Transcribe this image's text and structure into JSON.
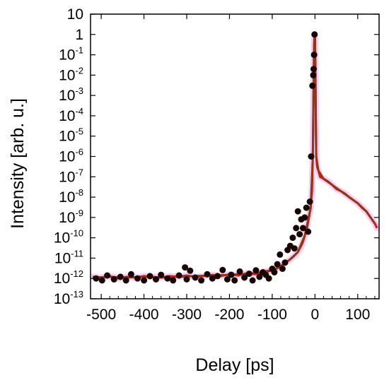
{
  "chart_data": {
    "type": "scatter",
    "title": "",
    "xlabel": "Delay [ps]",
    "ylabel": "Intensity [arb. u.]",
    "xlim": [
      -525,
      150
    ],
    "ylim": [
      1e-13,
      10
    ],
    "yscale": "log",
    "grid": false,
    "x_ticks": [
      {
        "value": -500,
        "label": "-500"
      },
      {
        "value": -400,
        "label": "-400"
      },
      {
        "value": -300,
        "label": "-300"
      },
      {
        "value": -200,
        "label": "-200"
      },
      {
        "value": -100,
        "label": "-100"
      },
      {
        "value": 0,
        "label": "0"
      },
      {
        "value": 100,
        "label": "100"
      }
    ],
    "y_ticks": [
      {
        "exp": 1,
        "base": "10",
        "sup": ""
      },
      {
        "exp": 0,
        "base": "1",
        "sup": ""
      },
      {
        "exp": -1,
        "base": "10",
        "sup": "-1"
      },
      {
        "exp": -2,
        "base": "10",
        "sup": "-2"
      },
      {
        "exp": -3,
        "base": "10",
        "sup": "-3"
      },
      {
        "exp": -4,
        "base": "10",
        "sup": "-4"
      },
      {
        "exp": -5,
        "base": "10",
        "sup": "-5"
      },
      {
        "exp": -6,
        "base": "10",
        "sup": "-6"
      },
      {
        "exp": -7,
        "base": "10",
        "sup": "-7"
      },
      {
        "exp": -8,
        "base": "10",
        "sup": "-8"
      },
      {
        "exp": -9,
        "base": "10",
        "sup": "-9"
      },
      {
        "exp": -10,
        "base": "10",
        "sup": "-10"
      },
      {
        "exp": -11,
        "base": "10",
        "sup": "-11"
      },
      {
        "exp": -12,
        "base": "10",
        "sup": "-12"
      },
      {
        "exp": -13,
        "base": "10",
        "sup": "-13"
      }
    ],
    "series": [
      {
        "kind": "line",
        "color": "#e0130f",
        "halo_color": "#f3a6ee",
        "x": [
          -520,
          -500,
          -480,
          -460,
          -440,
          -420,
          -400,
          -380,
          -360,
          -340,
          -320,
          -300,
          -280,
          -260,
          -240,
          -220,
          -200,
          -180,
          -160,
          -140,
          -120,
          -100,
          -90,
          -80,
          -70,
          -60,
          -50,
          -40,
          -30,
          -25,
          -20,
          -15,
          -10,
          -7,
          -5,
          -4,
          -3,
          -2,
          -1,
          0,
          1,
          2,
          3,
          5,
          8,
          12,
          20,
          30,
          40,
          50,
          60,
          70,
          80,
          90,
          100,
          110,
          120,
          130,
          140,
          145
        ],
        "y": [
          1.2e-12,
          1.1e-12,
          1.3e-12,
          1e-12,
          1.2e-12,
          1.1e-12,
          1.3e-12,
          1.2e-12,
          1.1e-12,
          1.3e-12,
          1.2e-12,
          1.4e-12,
          1.2e-12,
          1.3e-12,
          1.5e-12,
          1.3e-12,
          1.6e-12,
          1.4e-12,
          1.8e-12,
          1.6e-12,
          2.2e-12,
          2.5e-12,
          3e-12,
          4e-12,
          6e-12,
          8e-12,
          1.2e-11,
          2e-11,
          5e-11,
          1e-10,
          3e-10,
          1e-09,
          3e-09,
          2e-08,
          1e-06,
          0.0001,
          0.01,
          0.3,
          1.0,
          0.8,
          0.05,
          0.0001,
          1e-06,
          3e-07,
          2e-07,
          1e-07,
          8e-08,
          6e-08,
          4e-08,
          2.5e-08,
          2e-08,
          1.5e-08,
          1e-08,
          7e-09,
          5e-09,
          3e-09,
          2e-09,
          1e-09,
          5e-10,
          3e-10
        ]
      },
      {
        "kind": "line",
        "color": "#8b3a12",
        "x": [
          -520,
          -480,
          -440,
          -400,
          -360,
          -320,
          -280,
          -240,
          -200,
          -160,
          -120,
          -100,
          -80,
          -60,
          -40,
          -20,
          -10,
          -5,
          -2,
          -1,
          0,
          1,
          3,
          8,
          20,
          40,
          60,
          80,
          100,
          120,
          140
        ],
        "y": [
          1.1e-12,
          1.2e-12,
          1.1e-12,
          1.2e-12,
          1.1e-12,
          1.2e-12,
          1.3e-12,
          1.4e-12,
          1.5e-12,
          1.7e-12,
          2e-12,
          2.5e-12,
          4e-12,
          8e-12,
          2e-11,
          2e-10,
          3e-09,
          1e-06,
          0.2,
          1.0,
          0.6,
          0.02,
          1e-06,
          2e-07,
          8e-08,
          4e-08,
          2e-08,
          1e-08,
          5e-09,
          2e-09,
          5e-10
        ]
      },
      {
        "kind": "scatter",
        "color": "#1a0505",
        "x": [
          -512,
          -498,
          -486,
          -470,
          -455,
          -442,
          -430,
          -415,
          -400,
          -386,
          -372,
          -360,
          -345,
          -332,
          -318,
          -304,
          -300,
          -292,
          -280,
          -266,
          -252,
          -240,
          -228,
          -216,
          -205,
          -196,
          -188,
          -176,
          -165,
          -154,
          -146,
          -138,
          -130,
          -122,
          -115,
          -108,
          -100,
          -95,
          -88,
          -82,
          -76,
          -70,
          -64,
          -58,
          -52,
          -48,
          -44,
          -40,
          -36,
          -32,
          -28,
          -24,
          -20,
          -16,
          -12,
          -9,
          -6,
          -4,
          -3,
          -2,
          -1
        ],
        "y": [
          1e-12,
          8e-13,
          1.4e-12,
          9e-13,
          1.2e-12,
          8e-13,
          1.6e-12,
          1e-12,
          8e-13,
          1.3e-12,
          9e-13,
          1.5e-12,
          1e-12,
          8e-13,
          1.4e-12,
          3.5e-12,
          9e-13,
          2.4e-12,
          1.1e-12,
          8e-13,
          1.6e-12,
          1e-12,
          1.3e-12,
          2.6e-12,
          9e-13,
          1.5e-12,
          8e-13,
          2.2e-12,
          1.1e-12,
          1.7e-12,
          8e-13,
          2.5e-12,
          1.2e-12,
          2e-12,
          1.5e-12,
          1e-12,
          3e-12,
          2e-12,
          5e-12,
          1.5e-11,
          3e-12,
          6e-12,
          2.5e-11,
          4e-11,
          1e-10,
          3e-11,
          3e-10,
          2e-09,
          1.5e-10,
          8e-10,
          3e-10,
          1e-09,
          3e-09,
          2e-10,
          6e-09,
          1e-06,
          0.003,
          0.01,
          0.02,
          0.1,
          1.0
        ]
      }
    ]
  }
}
